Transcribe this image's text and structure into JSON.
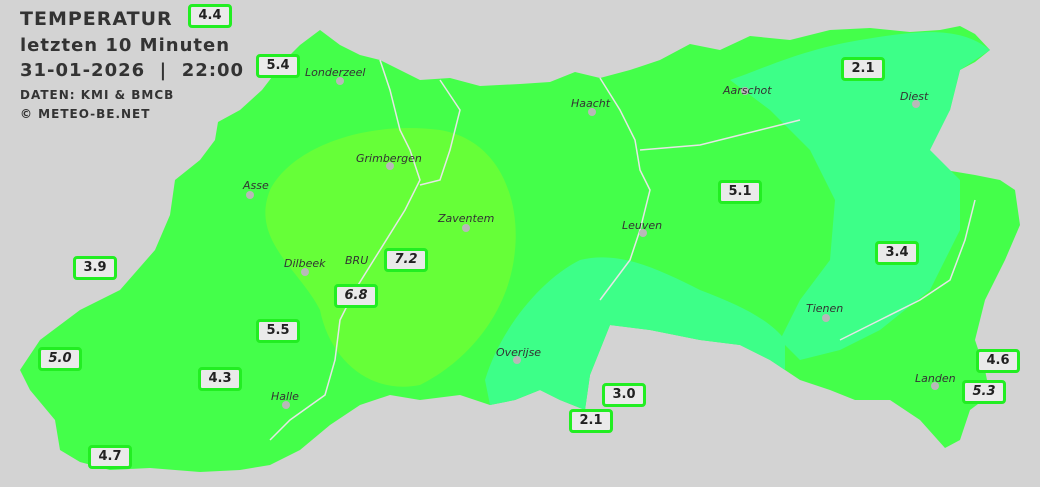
{
  "header": {
    "title": "TEMPERATUR",
    "subtitle": "letzten 10 Minuten",
    "datetime": "31-01-2026  |  22:00",
    "source": "DATEN: KMI & BMCB",
    "copyright": "© METEO-BE.NET"
  },
  "colors": {
    "background": "#d3d3d3",
    "base": "#44ff4a",
    "warm": "#66ff38",
    "cool": "#3dff88",
    "label_border": "#22ee22"
  },
  "stations": [
    {
      "value": "4.4",
      "italic": false
    },
    {
      "value": "5.4",
      "italic": false
    },
    {
      "value": "2.1",
      "italic": false
    },
    {
      "value": "5.1",
      "italic": false
    },
    {
      "value": "3.4",
      "italic": false
    },
    {
      "value": "3.9",
      "italic": false
    },
    {
      "value": "7.2",
      "italic": true
    },
    {
      "value": "6.8",
      "italic": true
    },
    {
      "value": "5.5",
      "italic": false
    },
    {
      "value": "5.0",
      "italic": true
    },
    {
      "value": "4.3",
      "italic": false
    },
    {
      "value": "4.6",
      "italic": false
    },
    {
      "value": "5.3",
      "italic": true
    },
    {
      "value": "3.0",
      "italic": false
    },
    {
      "value": "2.1",
      "italic": false
    },
    {
      "value": "4.7",
      "italic": false
    }
  ],
  "cities": [
    "Londerzeel",
    "Haacht",
    "Aarschot",
    "Diest",
    "Grimbergen",
    "Asse",
    "Zaventem",
    "Leuven",
    "Dilbeek",
    "BRU",
    "Tienen",
    "Overijse",
    "Halle",
    "Landen"
  ]
}
